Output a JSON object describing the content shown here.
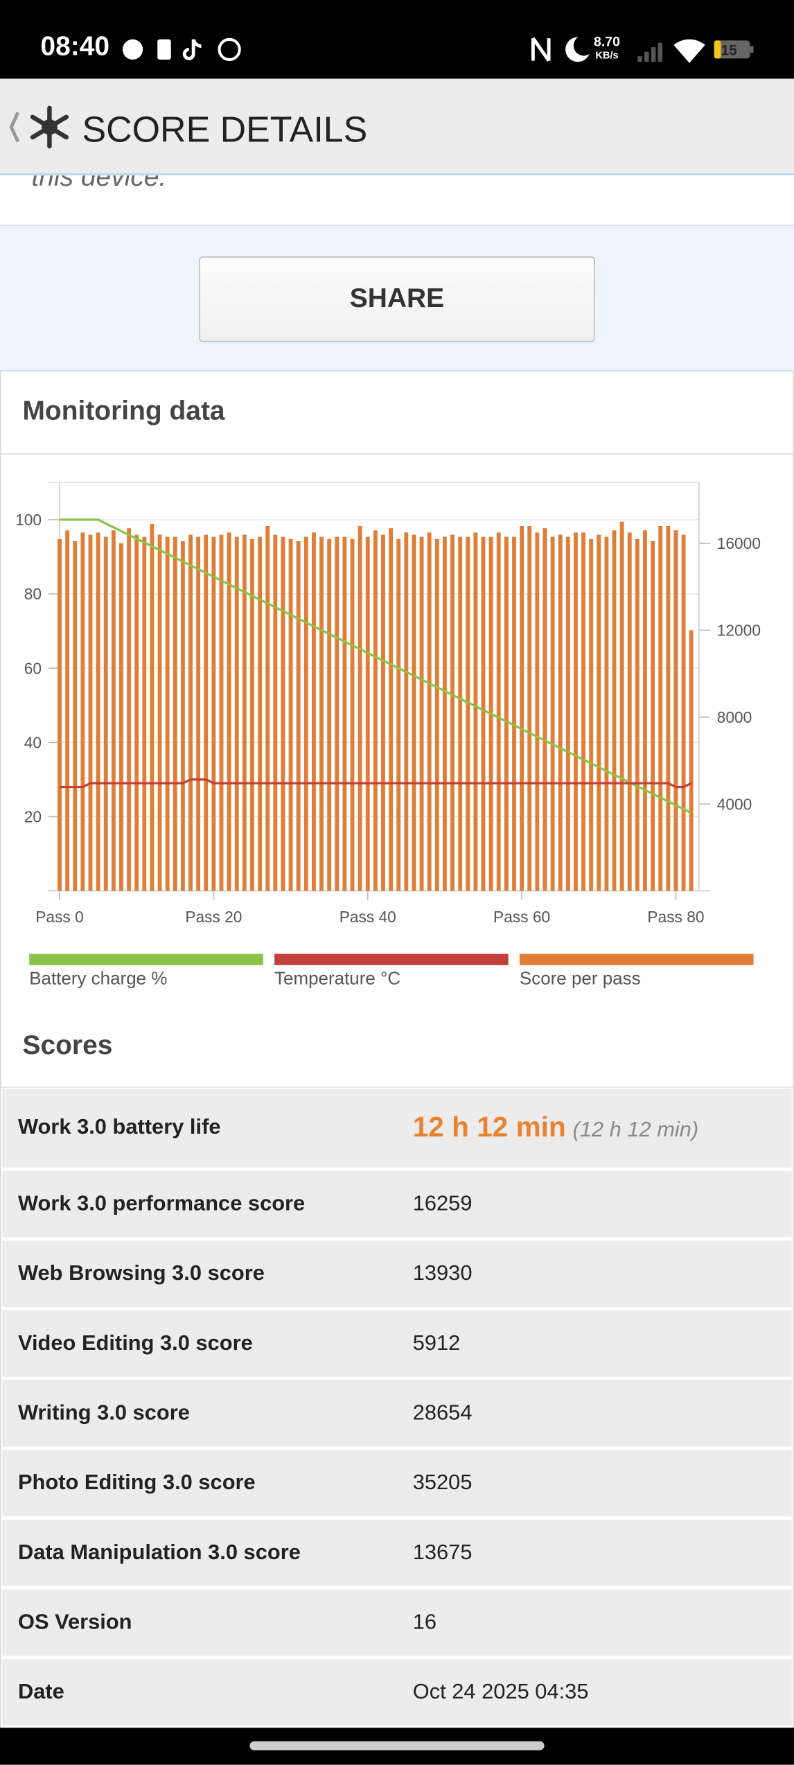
{
  "status_bar": {
    "time": "08:40",
    "net_speed": "8.70",
    "net_unit": "KB/s",
    "battery": "15"
  },
  "header": {
    "title": "SCORE DETAILS"
  },
  "intro_fragment": "this device.",
  "share_button": "SHARE",
  "monitoring": {
    "title": "Monitoring data"
  },
  "chart_data": {
    "type": "combo",
    "xlim": [
      0,
      83
    ],
    "xticks": [
      {
        "value": 0,
        "label": "Pass 0"
      },
      {
        "value": 20,
        "label": "Pass 20"
      },
      {
        "value": 40,
        "label": "Pass 40"
      },
      {
        "value": 60,
        "label": "Pass 60"
      },
      {
        "value": 80,
        "label": "Pass 80"
      }
    ],
    "ylim": [
      0,
      110
    ],
    "yticks": [
      20,
      40,
      60,
      80,
      100
    ],
    "y2lim": [
      0,
      18800
    ],
    "y2ticks": [
      4000,
      8000,
      12000,
      16000
    ],
    "grid": true,
    "legend": "bottom",
    "series": [
      {
        "name": "Battery charge %",
        "type": "line",
        "color": "#8bc34a",
        "x": [
          0,
          5,
          82
        ],
        "values": [
          100,
          100,
          21
        ]
      },
      {
        "name": "Temperature °C",
        "type": "line",
        "color": "#c0403a",
        "x": [
          0,
          3,
          4,
          16,
          17,
          19,
          20,
          79,
          80,
          81,
          82
        ],
        "values": [
          28,
          28,
          29,
          29,
          30,
          30,
          29,
          29,
          28,
          28,
          29
        ]
      },
      {
        "name": "Score per pass",
        "type": "bar",
        "axis": "y2",
        "color": "#e07d36",
        "x": [
          0,
          1,
          2,
          3,
          4,
          5,
          6,
          7,
          8,
          9,
          10,
          11,
          12,
          13,
          14,
          15,
          16,
          17,
          18,
          19,
          20,
          21,
          22,
          23,
          24,
          25,
          26,
          27,
          28,
          29,
          30,
          31,
          32,
          33,
          34,
          35,
          36,
          37,
          38,
          39,
          40,
          41,
          42,
          43,
          44,
          45,
          46,
          47,
          48,
          49,
          50,
          51,
          52,
          53,
          54,
          55,
          56,
          57,
          58,
          59,
          60,
          61,
          62,
          63,
          64,
          65,
          66,
          67,
          68,
          69,
          70,
          71,
          72,
          73,
          74,
          75,
          76,
          77,
          78,
          79,
          80,
          81,
          82
        ],
        "values": [
          16200,
          16600,
          16100,
          16500,
          16400,
          16500,
          16300,
          16600,
          16000,
          16700,
          16400,
          16300,
          16900,
          16400,
          16300,
          16300,
          16100,
          16400,
          16300,
          16400,
          16300,
          16400,
          16500,
          16300,
          16400,
          16200,
          16300,
          16800,
          16400,
          16300,
          16200,
          16100,
          16300,
          16500,
          16300,
          16200,
          16300,
          16300,
          16200,
          16800,
          16300,
          16600,
          16400,
          16700,
          16200,
          16500,
          16400,
          16300,
          16500,
          16200,
          16300,
          16400,
          16300,
          16300,
          16500,
          16300,
          16300,
          16500,
          16300,
          16300,
          16800,
          16800,
          16500,
          16700,
          16300,
          16400,
          16300,
          16500,
          16500,
          16200,
          16400,
          16300,
          16600,
          17000,
          16500,
          16200,
          16600,
          16100,
          16800,
          16800,
          16600,
          16400,
          12000
        ]
      }
    ]
  },
  "scores": {
    "title": "Scores",
    "rows": [
      {
        "label": "Work 3.0 battery life",
        "value": "12 h 12 min",
        "secondary": "(12 h 12 min)"
      },
      {
        "label": "Work 3.0 performance score",
        "value": "16259"
      },
      {
        "label": "Web Browsing 3.0 score",
        "value": "13930"
      },
      {
        "label": "Video Editing 3.0 score",
        "value": "5912"
      },
      {
        "label": "Writing 3.0 score",
        "value": "28654"
      },
      {
        "label": "Photo Editing 3.0 score",
        "value": "35205"
      },
      {
        "label": "Data Manipulation 3.0 score",
        "value": "13675"
      },
      {
        "label": "OS Version",
        "value": "16"
      },
      {
        "label": "Date",
        "value": "Oct 24 2025 04:35"
      }
    ]
  }
}
